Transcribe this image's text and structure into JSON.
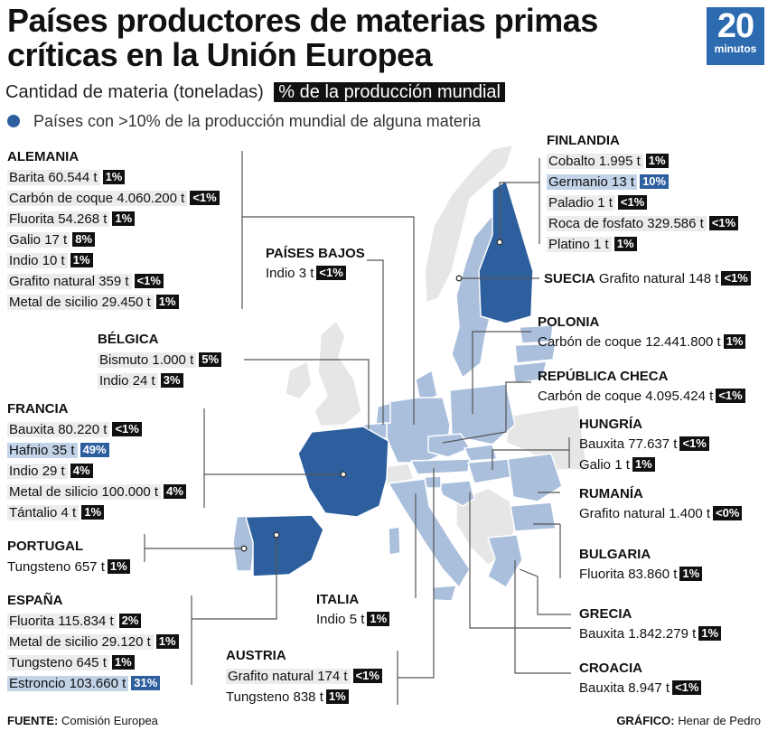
{
  "title": "Países productores de materias primas críticas en la Unión Europea",
  "logo": {
    "number": "20",
    "word": "minutos"
  },
  "subtitle": {
    "quantity_label": "Cantidad de materia (toneladas)",
    "pct_label": "% de la producción mundial"
  },
  "legend": {
    "label": "Países con >10% de la producción mundial de alguna materia",
    "color": "#2d5f9f"
  },
  "colors": {
    "highlight_country": "#2d5f9f",
    "eu_country": "#a9bfdc",
    "non_eu_land": "#e6e6e6",
    "pct_box": "#111111",
    "highlight_row": "#c3d3e8"
  },
  "countries": {
    "alemania": {
      "name": "ALEMANIA",
      "items": [
        {
          "mat": "Barita",
          "qty": "60.544 t",
          "pct": "1%"
        },
        {
          "mat": "Carbón de coque",
          "qty": "4.060.200 t",
          "pct": "<1%"
        },
        {
          "mat": "Fluorita",
          "qty": "54.268 t",
          "pct": "1%"
        },
        {
          "mat": "Galio",
          "qty": "17 t",
          "pct": "8%"
        },
        {
          "mat": "Indio",
          "qty": "10 t",
          "pct": "1%"
        },
        {
          "mat": "Grafito natural",
          "qty": "359 t",
          "pct": "<1%"
        },
        {
          "mat": "Metal de sicilio",
          "qty": "29.450 t",
          "pct": "1%"
        }
      ]
    },
    "paises_bajos": {
      "name": "PAÍSES BAJOS",
      "items": [
        {
          "mat": "Indio",
          "qty": "3 t",
          "pct": "<1%"
        }
      ]
    },
    "belgica": {
      "name": "BÉLGICA",
      "items": [
        {
          "mat": "Bismuto",
          "qty": "1.000 t",
          "pct": "5%"
        },
        {
          "mat": "Indio",
          "qty": "24 t",
          "pct": "3%"
        }
      ]
    },
    "francia": {
      "name": "FRANCIA",
      "items": [
        {
          "mat": "Bauxita",
          "qty": "80.220 t",
          "pct": "<1%"
        },
        {
          "mat": "Hafnio",
          "qty": "35 t",
          "pct": "49%"
        },
        {
          "mat": "Indio",
          "qty": "29 t",
          "pct": "4%"
        },
        {
          "mat": "Metal de silicio",
          "qty": "100.000 t",
          "pct": "4%"
        },
        {
          "mat": "Tántalio",
          "qty": "4 t",
          "pct": "1%"
        }
      ]
    },
    "portugal": {
      "name": "PORTUGAL",
      "items": [
        {
          "mat": "Tungsteno",
          "qty": "657 t",
          "pct": "1%"
        }
      ]
    },
    "espana": {
      "name": "ESPAÑA",
      "items": [
        {
          "mat": "Fluorita",
          "qty": "115.834 t",
          "pct": "2%"
        },
        {
          "mat": "Metal de sicilio",
          "qty": "29.120 t",
          "pct": "1%"
        },
        {
          "mat": "Tungsteno",
          "qty": "645 t",
          "pct": "1%"
        },
        {
          "mat": "Estroncio",
          "qty": "103.660 t",
          "pct": "31%"
        }
      ]
    },
    "italia": {
      "name": "ITALIA",
      "items": [
        {
          "mat": "Indio",
          "qty": "5 t",
          "pct": "1%"
        }
      ]
    },
    "austria": {
      "name": "AUSTRIA",
      "items": [
        {
          "mat": "Grafito natural",
          "qty": "174 t",
          "pct": "<1%"
        },
        {
          "mat": "Tungsteno",
          "qty": "838 t",
          "pct": "1%"
        }
      ]
    },
    "finlandia": {
      "name": "FINLANDIA",
      "items": [
        {
          "mat": "Cobalto",
          "qty": "1.995 t",
          "pct": "1%"
        },
        {
          "mat": "Germanio",
          "qty": "13 t",
          "pct": "10%"
        },
        {
          "mat": "Paladio",
          "qty": "1 t",
          "pct": "<1%"
        },
        {
          "mat": "Roca de fosfato",
          "qty": "329.586 t",
          "pct": "<1%"
        },
        {
          "mat": "Platino",
          "qty": "1 t",
          "pct": "1%"
        }
      ]
    },
    "suecia": {
      "name": "SUECIA",
      "items": [
        {
          "mat": "Grafito natural",
          "qty": "148 t",
          "pct": "<1%"
        }
      ]
    },
    "polonia": {
      "name": "POLONIA",
      "items": [
        {
          "mat": "Carbón de coque",
          "qty": "12.441.800 t",
          "pct": "1%"
        }
      ]
    },
    "chequia": {
      "name": "REPÚBLICA CHECA",
      "items": [
        {
          "mat": "Carbón de coque",
          "qty": "4.095.424 t",
          "pct": "<1%"
        }
      ]
    },
    "hungria": {
      "name": "HUNGRÍA",
      "items": [
        {
          "mat": "Bauxita",
          "qty": "77.637 t",
          "pct": "<1%"
        },
        {
          "mat": "Galio",
          "qty": "1 t",
          "pct": "1%"
        }
      ]
    },
    "rumania": {
      "name": "RUMANÍA",
      "items": [
        {
          "mat": "Grafito natural",
          "qty": "1.400 t",
          "pct": "<0%"
        }
      ]
    },
    "bulgaria": {
      "name": "BULGARIA",
      "items": [
        {
          "mat": "Fluorita",
          "qty": "83.860 t",
          "pct": "1%"
        }
      ]
    },
    "grecia": {
      "name": "GRECIA",
      "items": [
        {
          "mat": "Bauxita",
          "qty": "1.842.279 t",
          "pct": "1%"
        }
      ]
    },
    "croacia": {
      "name": "CROACIA",
      "items": [
        {
          "mat": "Bauxita",
          "qty": "8.947 t",
          "pct": "<1%"
        }
      ]
    }
  },
  "footer": {
    "source_label": "FUENTE:",
    "source": "Comisión Europea",
    "credit_label": "GRÁFICO:",
    "credit": "Henar de Pedro"
  }
}
